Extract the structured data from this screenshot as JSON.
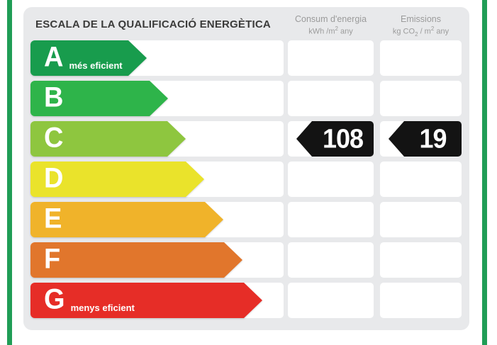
{
  "colors": {
    "edge_green": "#209D56",
    "panel_bg": "#E8E9EB",
    "row_bg": "#FFFFFF",
    "title_text": "#3B3B3A",
    "header_text": "#9B9B9B",
    "badge_black": "#131313",
    "white": "#FFFFFF"
  },
  "header": {
    "title": "ESCALA DE LA QUALIFICACIÓ ENERGÈTICA",
    "col1": {
      "label": "Consum d'energia",
      "unit_p1": "kWh /m",
      "unit_sup": "2",
      "unit_p2": " any"
    },
    "col2": {
      "label": "Emissions",
      "unit_p1": "kg CO",
      "unit_sub": "2",
      "unit_p2": " / m",
      "unit_sup": "2",
      "unit_p3": " any"
    }
  },
  "bands": [
    {
      "letter": "A",
      "note": "més eficient",
      "color": "#189C4D",
      "body_width": 138
    },
    {
      "letter": "B",
      "note": "",
      "color": "#2EB44A",
      "body_width": 168
    },
    {
      "letter": "C",
      "note": "",
      "color": "#8EC63F",
      "body_width": 193
    },
    {
      "letter": "D",
      "note": "",
      "color": "#EAE32B",
      "body_width": 219
    },
    {
      "letter": "E",
      "note": "",
      "color": "#F0B32A",
      "body_width": 246
    },
    {
      "letter": "F",
      "note": "",
      "color": "#E1762C",
      "body_width": 273
    },
    {
      "letter": "G",
      "note": "menys eficient",
      "color": "#E62D27",
      "body_width": 301
    }
  ],
  "rating": {
    "band": "C",
    "consum": "108",
    "emissions": "19"
  },
  "chart_data": {
    "type": "bar",
    "title": "ESCALA DE LA QUALIFICACIÓ ENERGÈTICA",
    "categories": [
      "A",
      "B",
      "C",
      "D",
      "E",
      "F",
      "G"
    ],
    "series": [
      {
        "name": "band-arrow-length-px",
        "values": [
          164,
          194,
          219,
          245,
          272,
          299,
          327
        ]
      }
    ],
    "band_colors": [
      "#189C4D",
      "#2EB44A",
      "#8EC63F",
      "#EAE32B",
      "#F0B32A",
      "#E1762C",
      "#E62D27"
    ],
    "annotations": {
      "rating_band": "C",
      "consum_denergia_kwh_m2_any": 108,
      "emissions_kg_co2_m2_any": 19,
      "most_efficient_label": "més eficient",
      "least_efficient_label": "menys eficient"
    },
    "legend": false,
    "grid": false
  }
}
